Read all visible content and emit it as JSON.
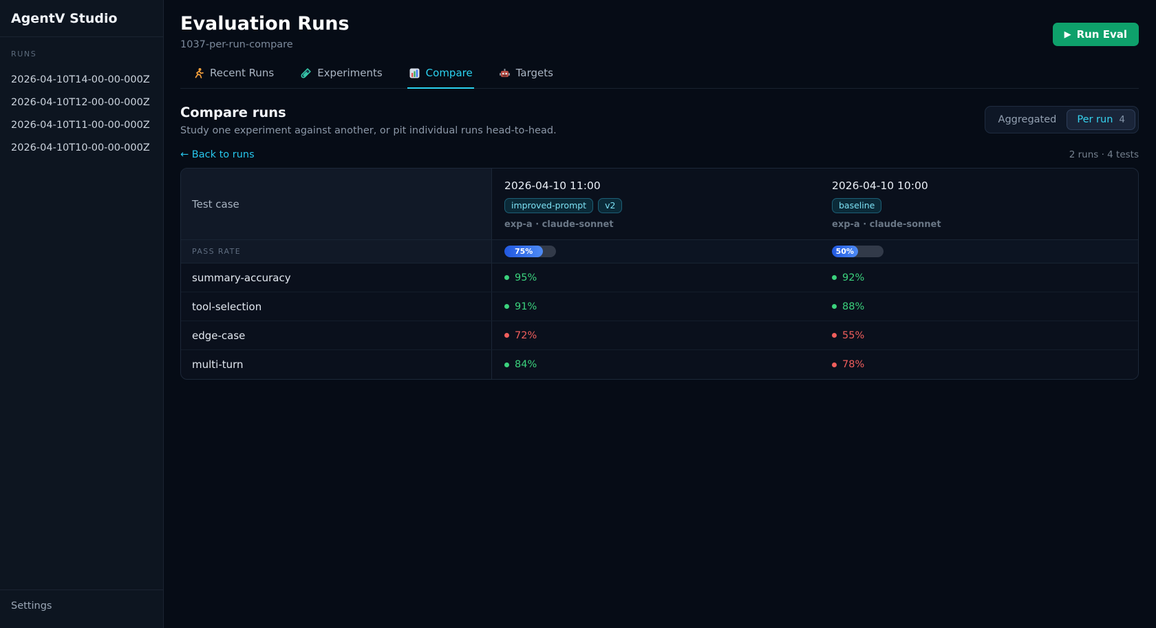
{
  "app": {
    "title": "AgentV Studio"
  },
  "sidebar": {
    "section_label": "RUNS",
    "runs": [
      "2026-04-10T14-00-00-000Z",
      "2026-04-10T12-00-00-000Z",
      "2026-04-10T11-00-00-000Z",
      "2026-04-10T10-00-00-000Z"
    ],
    "settings_label": "Settings"
  },
  "header": {
    "title": "Evaluation Runs",
    "subtitle": "1037-per-run-compare",
    "run_eval_icon": "▶",
    "run_eval_label": "Run Eval"
  },
  "tabs": [
    {
      "label": "Recent Runs",
      "icon": "runner-icon",
      "active": false
    },
    {
      "label": "Experiments",
      "icon": "test-tube-icon",
      "active": false
    },
    {
      "label": "Compare",
      "icon": "bar-chart-icon",
      "active": true
    },
    {
      "label": "Targets",
      "icon": "robot-icon",
      "active": false
    }
  ],
  "compare": {
    "title": "Compare runs",
    "subtitle": "Study one experiment against another, or pit individual runs head-to-head.",
    "view_toggle": {
      "inactive_option": "Aggregated",
      "active_option": "Per run",
      "count": "4"
    },
    "back_link": "← Back to runs",
    "summary": "2 runs · 4 tests"
  },
  "table": {
    "test_case_header": "Test case",
    "pass_rate_label": "PASS RATE",
    "runs": [
      {
        "timestamp": "2026-04-10 11:00",
        "badges": [
          "improved-prompt",
          "v2"
        ],
        "meta": "exp-a · claude-sonnet",
        "pass_rate": 75,
        "pass_rate_text": "75%"
      },
      {
        "timestamp": "2026-04-10 10:00",
        "badges": [
          "baseline"
        ],
        "meta": "exp-a · claude-sonnet",
        "pass_rate": 50,
        "pass_rate_text": "50%"
      }
    ],
    "rows": [
      {
        "name": "summary-accuracy",
        "values": [
          {
            "text": "95%",
            "status": "pass"
          },
          {
            "text": "92%",
            "status": "pass"
          }
        ]
      },
      {
        "name": "tool-selection",
        "values": [
          {
            "text": "91%",
            "status": "pass"
          },
          {
            "text": "88%",
            "status": "pass"
          }
        ]
      },
      {
        "name": "edge-case",
        "values": [
          {
            "text": "72%",
            "status": "fail"
          },
          {
            "text": "55%",
            "status": "fail"
          }
        ]
      },
      {
        "name": "multi-turn",
        "values": [
          {
            "text": "84%",
            "status": "pass"
          },
          {
            "text": "78%",
            "status": "fail"
          }
        ]
      }
    ]
  },
  "colors": {
    "accent_cyan": "#2bd2f0",
    "button_green": "#0ea16b",
    "pass_green": "#3bd27d",
    "fail_red": "#f05e5c",
    "bar_blue": "#3b78f0"
  }
}
